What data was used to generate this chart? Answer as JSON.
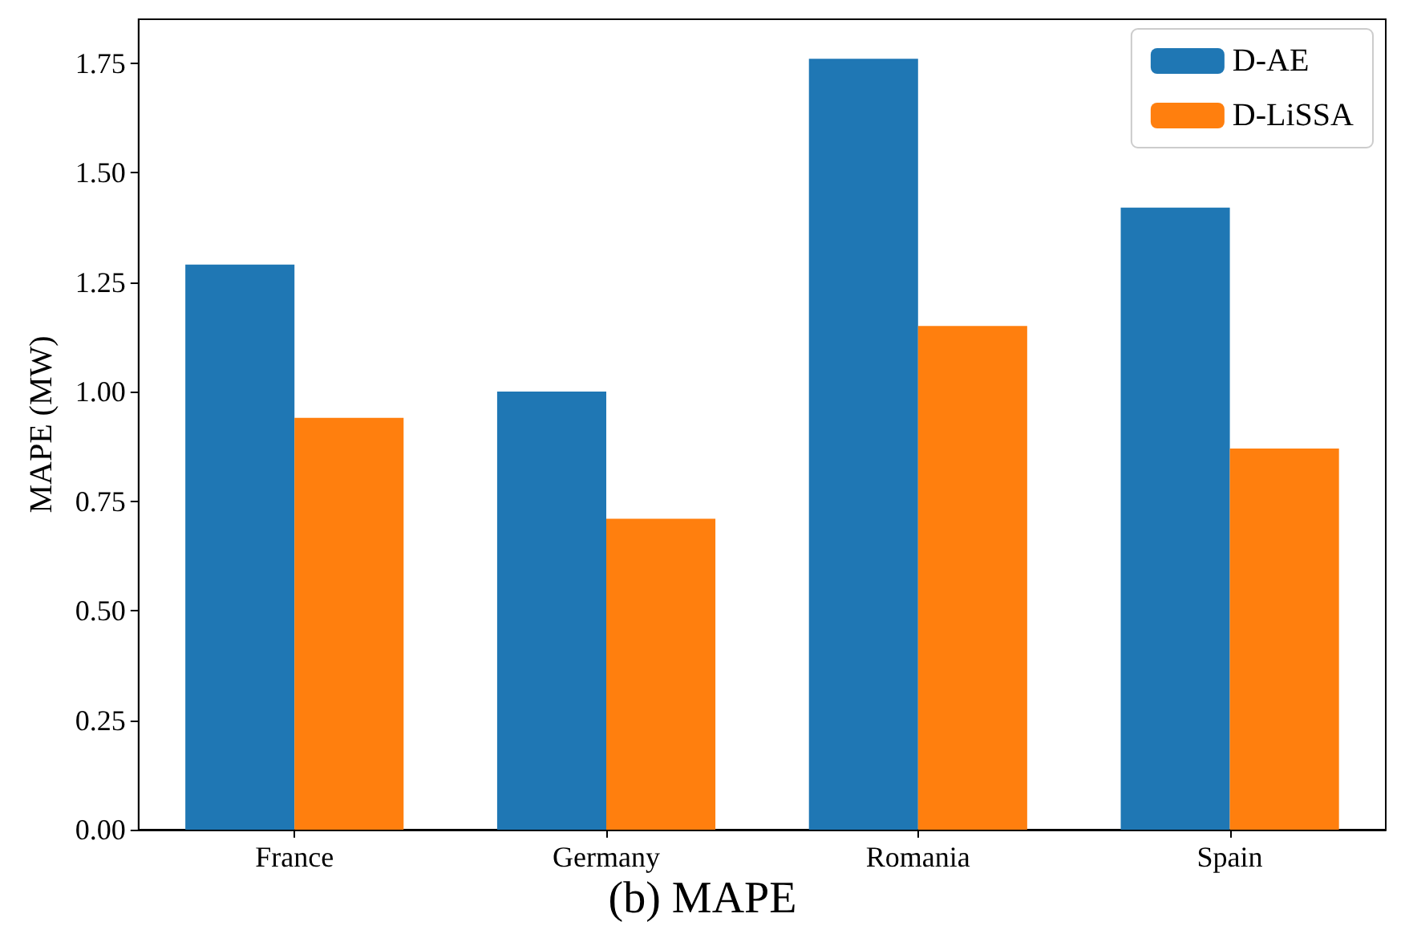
{
  "chart_data": {
    "type": "bar",
    "title": "(b) MAPE",
    "ylabel": "MAPE (MW)",
    "categories": [
      "France",
      "Germany",
      "Romania",
      "Spain"
    ],
    "series": [
      {
        "name": "D-AE",
        "color": "#1f77b4",
        "values": [
          1.29,
          1.0,
          1.76,
          1.42
        ]
      },
      {
        "name": "D-LiSSA",
        "color": "#ff7f0e",
        "values": [
          0.94,
          0.71,
          1.15,
          0.87
        ]
      }
    ],
    "ylim": [
      0,
      1.85
    ],
    "yticks": [
      {
        "value": 0,
        "label": "0.00"
      },
      {
        "value": 0.25,
        "label": "0.25"
      },
      {
        "value": 0.5,
        "label": "0.50"
      },
      {
        "value": 0.75,
        "label": "0.75"
      },
      {
        "value": 1,
        "label": "1.00"
      },
      {
        "value": 1.25,
        "label": "1.25"
      },
      {
        "value": 1.5,
        "label": "1.50"
      },
      {
        "value": 1.75,
        "label": "1.75"
      }
    ],
    "grid": false,
    "legend": "top right"
  }
}
